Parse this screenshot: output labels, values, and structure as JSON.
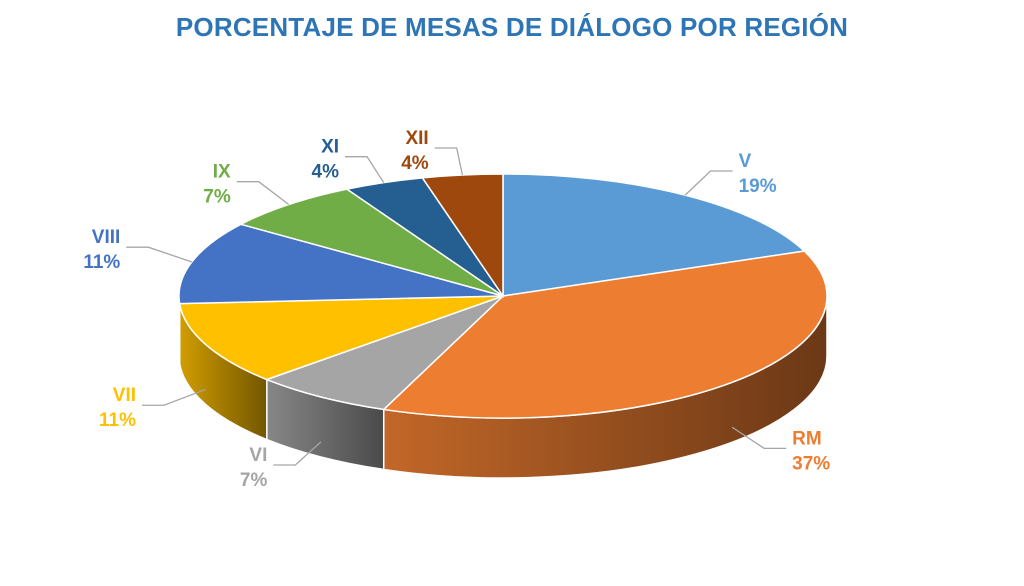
{
  "chart_data": {
    "type": "pie",
    "title": "PORCENTAJE DE MESAS DE DIÁLOGO POR REGIÓN",
    "style": "3d",
    "categories": [
      "V",
      "RM",
      "VI",
      "VII",
      "VIII",
      "IX",
      "XI",
      "XII"
    ],
    "values": [
      19,
      37,
      7,
      11,
      11,
      7,
      4,
      4
    ],
    "value_labels": [
      "19%",
      "37%",
      "7%",
      "11%",
      "11%",
      "7%",
      "4%",
      "4%"
    ],
    "colors": [
      "#5B9BD5",
      "#ED7D31",
      "#A5A5A5",
      "#FFC000",
      "#4472C4",
      "#70AD47",
      "#255E91",
      "#9E480E"
    ],
    "title_color": "#2E75B6",
    "legend": "none"
  }
}
